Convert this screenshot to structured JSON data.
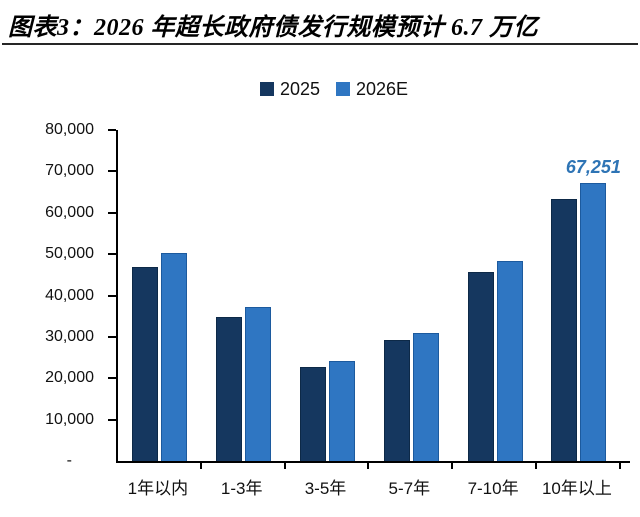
{
  "figure": {
    "title": "图表3：2026 年超长政府债发行规模预计 6.7 万亿"
  },
  "chart_data": {
    "type": "bar",
    "title": "图表3：2026 年超长政府债发行规模预计 6.7 万亿",
    "categories": [
      "1年以内",
      "1-3年",
      "3-5年",
      "5-7年",
      "7-10年",
      "10年以上"
    ],
    "series": [
      {
        "name": "2025",
        "color": "#15375F",
        "border_color": "#0D2947",
        "values": [
          46900,
          34800,
          22800,
          29200,
          45600,
          63400
        ]
      },
      {
        "name": "2026E",
        "color": "#2F76C2",
        "border_color": "#1C5A9E",
        "values": [
          50200,
          37200,
          24100,
          31000,
          48400,
          67251
        ]
      }
    ],
    "xlabel": "",
    "ylabel": "",
    "ylim": [
      0,
      80000
    ],
    "ytick_step": 10000,
    "ytick_labels": [
      "-",
      "10,000",
      "20,000",
      "30,000",
      "40,000",
      "50,000",
      "60,000",
      "70,000",
      "80,000"
    ],
    "annotation": {
      "text": "67,251",
      "series": "2026E",
      "category": "10年以上",
      "color": "#2E74B5"
    },
    "legend_position": "top",
    "grid": false,
    "colors": {
      "axis": "#000000",
      "title_text": "#000000",
      "divider": "#262626",
      "tick_text": "#111111"
    }
  }
}
